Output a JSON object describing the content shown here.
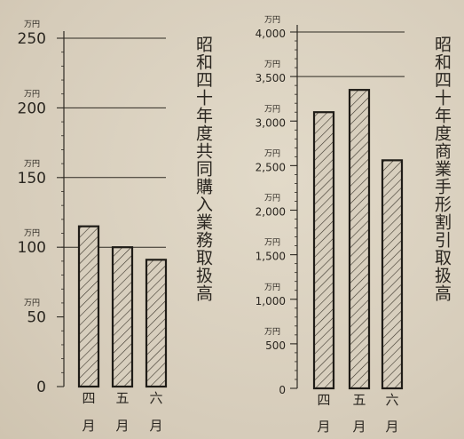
{
  "chart_data": [
    {
      "type": "bar",
      "title": "昭和四十年度共同購入業務取扱高",
      "unit": "万円",
      "categories": [
        "四月",
        "五月",
        "六月"
      ],
      "category_top": [
        "四",
        "五",
        "六"
      ],
      "category_bottom": [
        "月",
        "月",
        "月"
      ],
      "values": [
        115,
        100,
        91
      ],
      "ylim": [
        0,
        250
      ],
      "yticks": [
        0,
        50,
        100,
        150,
        200,
        250
      ],
      "ytick_labels": [
        "0",
        "50",
        "100",
        "150",
        "200",
        "250"
      ],
      "grid_lines": [
        100,
        150,
        200,
        250
      ],
      "hatch": "diagonal"
    },
    {
      "type": "bar",
      "title": "昭和四十年度商業手形割引取扱高",
      "unit": "万円",
      "categories": [
        "四月",
        "五月",
        "六月"
      ],
      "category_top": [
        "四",
        "五",
        "六"
      ],
      "category_bottom": [
        "月",
        "月",
        "月"
      ],
      "values": [
        3100,
        3350,
        2560
      ],
      "ylim": [
        0,
        4000
      ],
      "yticks": [
        0,
        500,
        1000,
        1500,
        2000,
        2500,
        3000,
        3500,
        4000
      ],
      "ytick_labels": [
        "0",
        "500",
        "1,000",
        "1,500",
        "2,000",
        "2,500",
        "3,000",
        "3,500",
        "4,000"
      ],
      "grid_lines": [
        3500,
        4000
      ],
      "hatch": "diagonal"
    }
  ]
}
